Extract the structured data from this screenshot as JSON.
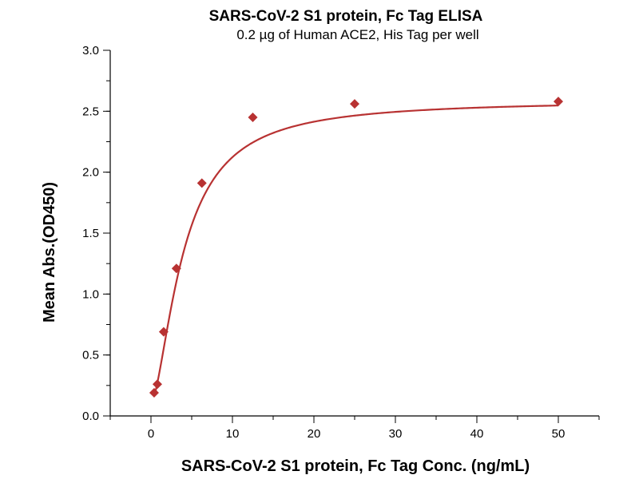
{
  "colors": {
    "series": "#b83232",
    "axis": "#000000",
    "background": "#ffffff"
  },
  "chart_data": {
    "type": "scatter",
    "title": "SARS-CoV-2 S1 protein, Fc Tag ELISA",
    "subtitle": "0.2 µg of Human ACE2, His Tag per well",
    "xlabel": "SARS-CoV-2 S1 protein, Fc Tag Conc. (ng/mL)",
    "ylabel": "Mean Abs.(OD450)",
    "xlim": [
      -5,
      55
    ],
    "ylim": [
      0,
      3.0
    ],
    "xticks": [
      0,
      10,
      20,
      30,
      40,
      50
    ],
    "xtick_labels": [
      "0",
      "10",
      "20",
      "30",
      "40",
      "50"
    ],
    "xminor_step": 5,
    "yticks": [
      0,
      0.5,
      1.0,
      1.5,
      2.0,
      2.5,
      3.0
    ],
    "ytick_labels": [
      "0.0",
      "0.5",
      "1.0",
      "1.5",
      "2.0",
      "2.5",
      "3.0"
    ],
    "yminor_step": 0.25,
    "grid": false,
    "legend": "none",
    "series": [
      {
        "marker": "diamond",
        "x": [
          0.39,
          0.78,
          1.56,
          3.125,
          6.25,
          12.5,
          25,
          50
        ],
        "y": [
          0.19,
          0.26,
          0.69,
          1.21,
          1.91,
          2.45,
          2.56,
          2.58
        ],
        "fit": {
          "model": "4PL",
          "bottom": 0.1,
          "top": 2.59,
          "ec50": 4.0,
          "hill": 1.6
        }
      }
    ]
  }
}
